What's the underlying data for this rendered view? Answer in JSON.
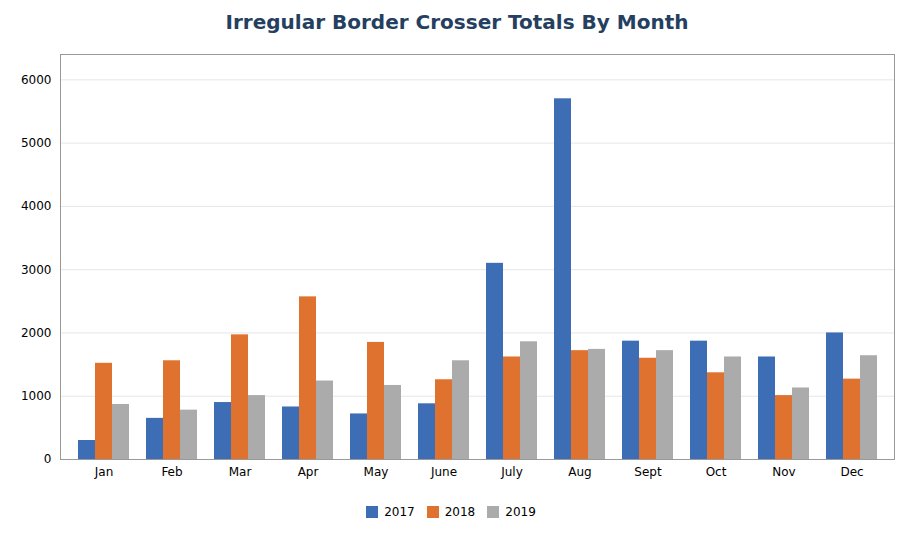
{
  "chart_data": {
    "type": "bar",
    "title": "Irregular Border Crosser Totals By Month",
    "categories": [
      "Jan",
      "Feb",
      "Mar",
      "Apr",
      "May",
      "June",
      "July",
      "Aug",
      "Sept",
      "Oct",
      "Nov",
      "Dec"
    ],
    "series": [
      {
        "name": "2017",
        "color": "#3D6DB5",
        "values": [
          300,
          650,
          900,
          830,
          720,
          880,
          3100,
          5700,
          1870,
          1870,
          1620,
          2000
        ]
      },
      {
        "name": "2018",
        "color": "#E07230",
        "values": [
          1520,
          1560,
          1970,
          2570,
          1850,
          1260,
          1620,
          1720,
          1600,
          1370,
          1010,
          1270
        ]
      },
      {
        "name": "2019",
        "color": "#ABABAB",
        "values": [
          870,
          780,
          1010,
          1240,
          1170,
          1560,
          1860,
          1740,
          1720,
          1620,
          1130,
          1640
        ]
      }
    ],
    "ylim": [
      0,
      6400
    ],
    "yticks": [
      0,
      1000,
      2000,
      3000,
      4000,
      5000,
      6000
    ],
    "grid": true,
    "legend": "bottom"
  }
}
